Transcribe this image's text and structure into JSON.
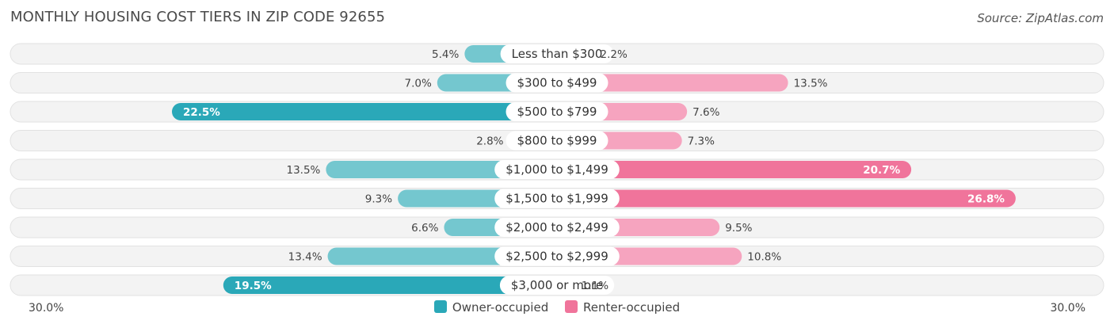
{
  "title": "MONTHLY HOUSING COST TIERS IN ZIP CODE 92655",
  "source": "Source: ZipAtlas.com",
  "colors": {
    "owner": "#2aa8b8",
    "owner_light": "#74c7cf",
    "renter": "#f0749b",
    "renter_light": "#f6a4bf",
    "row_bg": "#f1f1f1"
  },
  "axis": {
    "left_label": "30.0%",
    "right_label": "30.0%"
  },
  "legend": {
    "owner_label": "Owner-occupied",
    "renter_label": "Renter-occupied"
  },
  "chart_data": {
    "type": "bar",
    "orientation": "horizontal-diverging",
    "title": "MONTHLY HOUSING COST TIERS IN ZIP CODE 92655",
    "xlim": [
      -30,
      30
    ],
    "categories": [
      "Less than $300",
      "$300 to $499",
      "$500 to $799",
      "$800 to $999",
      "$1,000 to $1,499",
      "$1,500 to $1,999",
      "$2,000 to $2,499",
      "$2,500 to $2,999",
      "$3,000 or more"
    ],
    "series": [
      {
        "name": "Owner-occupied",
        "values": [
          5.4,
          7.0,
          22.5,
          2.8,
          13.5,
          9.3,
          6.6,
          13.4,
          19.5
        ],
        "labels": [
          "5.4%",
          "7.0%",
          "22.5%",
          "2.8%",
          "13.5%",
          "9.3%",
          "6.6%",
          "13.4%",
          "19.5%"
        ]
      },
      {
        "name": "Renter-occupied",
        "values": [
          2.2,
          13.5,
          7.6,
          7.3,
          20.7,
          26.8,
          9.5,
          10.8,
          1.1
        ],
        "labels": [
          "2.2%",
          "13.5%",
          "7.6%",
          "7.3%",
          "20.7%",
          "26.8%",
          "9.5%",
          "10.8%",
          "1.1%"
        ]
      }
    ]
  }
}
